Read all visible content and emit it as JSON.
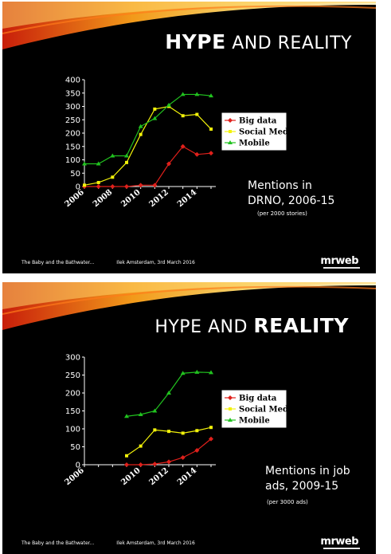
{
  "slides": [
    {
      "title_plain": "AND REALITY",
      "title_strong": "HYPE",
      "caption": [
        "Mentions in",
        "DRNO, 2006-15"
      ],
      "caption_sub": "(per 2000 stories)",
      "footer_left": "The Baby and the Bathwater...",
      "footer_event": "Ilek Amsterdam, 3rd March 2016",
      "logo": "mrweb"
    },
    {
      "title_plain": "HYPE AND",
      "title_strong": "REALITY",
      "caption": [
        "Mentions in job",
        "ads, 2009-15"
      ],
      "caption_sub": "(per 3000 ads)",
      "footer_left": "The Baby and the Bathwater...",
      "footer_event": "Ilek Amsterdam, 3rd March 2016",
      "logo": "mrweb"
    }
  ],
  "colors": {
    "big_data": "#e0201b",
    "social_media": "#f2f20a",
    "mobile": "#21c21f",
    "background": "#000000",
    "text": "#ffffff"
  },
  "chart_data": [
    {
      "type": "line",
      "x": [
        2006,
        2007,
        2008,
        2009,
        2010,
        2011,
        2012,
        2013,
        2014,
        2015
      ],
      "x_ticks": [
        "2006",
        "2008",
        "2010",
        "2012",
        "2014"
      ],
      "ylim": [
        0,
        400
      ],
      "y_ticks": [
        "0",
        "50",
        "100",
        "150",
        "200",
        "250",
        "300",
        "350",
        "400"
      ],
      "legend_position": "right",
      "series": [
        {
          "name": "Big data",
          "values": [
            0,
            0,
            0,
            0,
            5,
            5,
            85,
            150,
            120,
            125
          ]
        },
        {
          "name": "Social Media",
          "values": [
            5,
            15,
            35,
            90,
            195,
            290,
            300,
            265,
            270,
            215
          ]
        },
        {
          "name": "Mobile",
          "values": [
            85,
            85,
            115,
            115,
            225,
            255,
            305,
            345,
            345,
            340
          ]
        }
      ]
    },
    {
      "type": "line",
      "x": [
        2006,
        2007,
        2008,
        2009,
        2010,
        2011,
        2012,
        2013,
        2014,
        2015
      ],
      "x_ticks": [
        "2006",
        "2010",
        "2012",
        "2014"
      ],
      "ylim": [
        0,
        300
      ],
      "y_ticks": [
        "0",
        "50",
        "100",
        "150",
        "200",
        "250",
        "300"
      ],
      "legend_position": "right",
      "series": [
        {
          "name": "Big data",
          "values": [
            null,
            null,
            null,
            0,
            0,
            2,
            8,
            20,
            40,
            72
          ]
        },
        {
          "name": "Social Media",
          "values": [
            null,
            null,
            null,
            25,
            52,
            97,
            93,
            88,
            95,
            104
          ]
        },
        {
          "name": "Mobile",
          "values": [
            null,
            null,
            null,
            135,
            140,
            150,
            200,
            255,
            258,
            257
          ]
        }
      ]
    }
  ]
}
